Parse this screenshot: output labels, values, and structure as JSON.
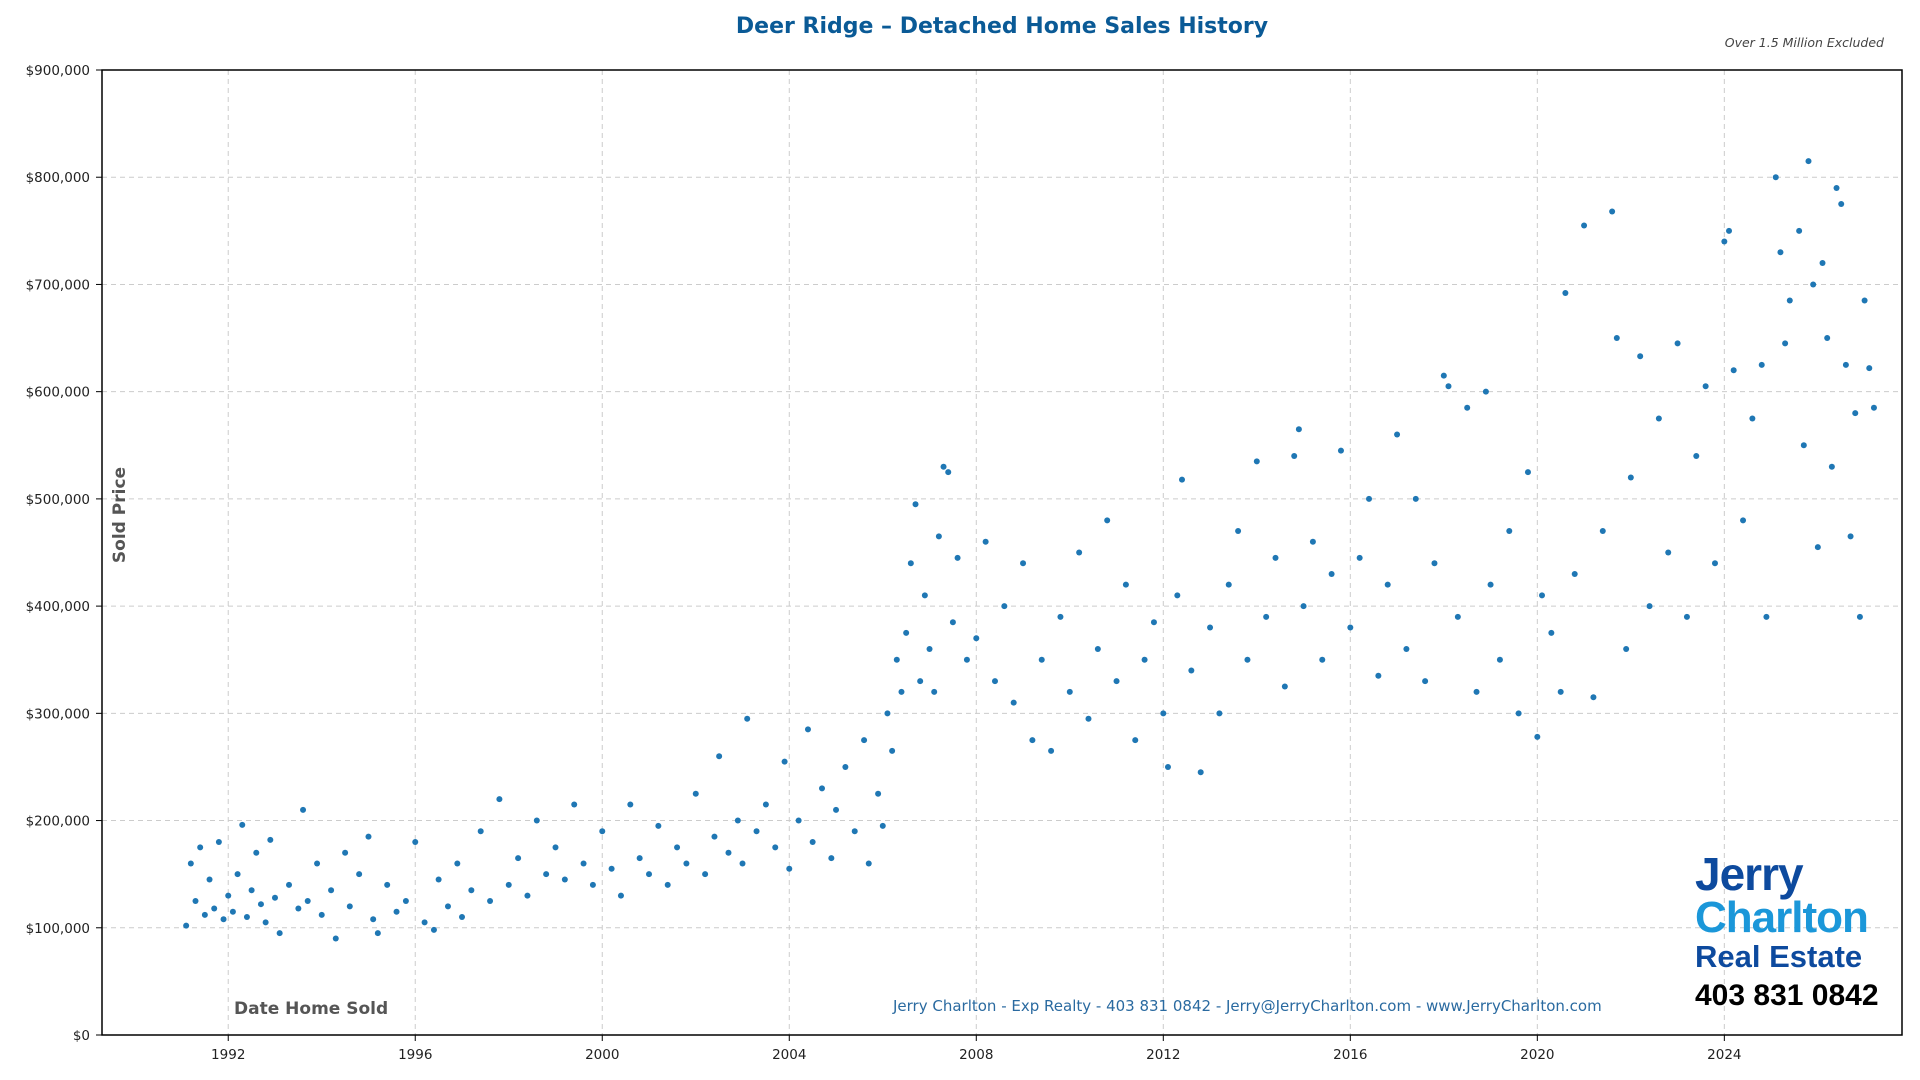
{
  "chart_data": {
    "type": "scatter",
    "title": "Deer Ridge – Detached Home Sales History",
    "subtitle": "Over 1.5 Million Excluded",
    "xlabel": "Date Home Sold",
    "ylabel": "Sold Price",
    "xlim": [
      1989.3,
      2027.8
    ],
    "ylim": [
      0,
      900000
    ],
    "x_ticks": [
      "1992",
      "1996",
      "2000",
      "2004",
      "2008",
      "2012",
      "2016",
      "2020",
      "2024"
    ],
    "y_ticks": [
      "$0",
      "$100,000",
      "$200,000",
      "$300,000",
      "$400,000",
      "$500,000",
      "$600,000",
      "$700,000",
      "$800,000",
      "$900,000"
    ],
    "grid": true,
    "color": "#1f77b4",
    "points": [
      [
        1991.1,
        102000
      ],
      [
        1991.2,
        160000
      ],
      [
        1991.3,
        125000
      ],
      [
        1991.4,
        175000
      ],
      [
        1991.5,
        112000
      ],
      [
        1991.6,
        145000
      ],
      [
        1991.7,
        118000
      ],
      [
        1991.8,
        180000
      ],
      [
        1991.9,
        108000
      ],
      [
        1992.0,
        130000
      ],
      [
        1992.1,
        115000
      ],
      [
        1992.2,
        150000
      ],
      [
        1992.3,
        196000
      ],
      [
        1992.4,
        110000
      ],
      [
        1992.5,
        135000
      ],
      [
        1992.6,
        170000
      ],
      [
        1992.7,
        122000
      ],
      [
        1992.8,
        105000
      ],
      [
        1992.9,
        182000
      ],
      [
        1993.0,
        128000
      ],
      [
        1993.1,
        95000
      ],
      [
        1993.3,
        140000
      ],
      [
        1993.5,
        118000
      ],
      [
        1993.6,
        210000
      ],
      [
        1993.7,
        125000
      ],
      [
        1993.9,
        160000
      ],
      [
        1994.0,
        112000
      ],
      [
        1994.2,
        135000
      ],
      [
        1994.3,
        90000
      ],
      [
        1994.5,
        170000
      ],
      [
        1994.6,
        120000
      ],
      [
        1994.8,
        150000
      ],
      [
        1995.0,
        185000
      ],
      [
        1995.1,
        108000
      ],
      [
        1995.2,
        95000
      ],
      [
        1995.4,
        140000
      ],
      [
        1995.6,
        115000
      ],
      [
        1995.8,
        125000
      ],
      [
        1996.0,
        180000
      ],
      [
        1996.2,
        105000
      ],
      [
        1996.4,
        98000
      ],
      [
        1996.5,
        145000
      ],
      [
        1996.7,
        120000
      ],
      [
        1996.9,
        160000
      ],
      [
        1997.0,
        110000
      ],
      [
        1997.2,
        135000
      ],
      [
        1997.4,
        190000
      ],
      [
        1997.6,
        125000
      ],
      [
        1997.8,
        220000
      ],
      [
        1998.0,
        140000
      ],
      [
        1998.2,
        165000
      ],
      [
        1998.4,
        130000
      ],
      [
        1998.6,
        200000
      ],
      [
        1998.8,
        150000
      ],
      [
        1999.0,
        175000
      ],
      [
        1999.2,
        145000
      ],
      [
        1999.4,
        215000
      ],
      [
        1999.6,
        160000
      ],
      [
        1999.8,
        140000
      ],
      [
        2000.0,
        190000
      ],
      [
        2000.2,
        155000
      ],
      [
        2000.4,
        130000
      ],
      [
        2000.6,
        215000
      ],
      [
        2000.8,
        165000
      ],
      [
        2001.0,
        150000
      ],
      [
        2001.2,
        195000
      ],
      [
        2001.4,
        140000
      ],
      [
        2001.6,
        175000
      ],
      [
        2001.8,
        160000
      ],
      [
        2002.0,
        225000
      ],
      [
        2002.2,
        150000
      ],
      [
        2002.4,
        185000
      ],
      [
        2002.5,
        260000
      ],
      [
        2002.7,
        170000
      ],
      [
        2002.9,
        200000
      ],
      [
        2003.0,
        160000
      ],
      [
        2003.1,
        295000
      ],
      [
        2003.3,
        190000
      ],
      [
        2003.5,
        215000
      ],
      [
        2003.7,
        175000
      ],
      [
        2003.9,
        255000
      ],
      [
        2004.0,
        155000
      ],
      [
        2004.2,
        200000
      ],
      [
        2004.4,
        285000
      ],
      [
        2004.5,
        180000
      ],
      [
        2004.7,
        230000
      ],
      [
        2004.9,
        165000
      ],
      [
        2005.0,
        210000
      ],
      [
        2005.2,
        250000
      ],
      [
        2005.4,
        190000
      ],
      [
        2005.6,
        275000
      ],
      [
        2005.7,
        160000
      ],
      [
        2005.9,
        225000
      ],
      [
        2006.0,
        195000
      ],
      [
        2006.1,
        300000
      ],
      [
        2006.2,
        265000
      ],
      [
        2006.3,
        350000
      ],
      [
        2006.4,
        320000
      ],
      [
        2006.5,
        375000
      ],
      [
        2006.6,
        440000
      ],
      [
        2006.7,
        495000
      ],
      [
        2006.8,
        330000
      ],
      [
        2006.9,
        410000
      ],
      [
        2007.0,
        360000
      ],
      [
        2007.1,
        320000
      ],
      [
        2007.2,
        465000
      ],
      [
        2007.3,
        530000
      ],
      [
        2007.4,
        525000
      ],
      [
        2007.5,
        385000
      ],
      [
        2007.6,
        445000
      ],
      [
        2007.8,
        350000
      ],
      [
        2008.0,
        370000
      ],
      [
        2008.2,
        460000
      ],
      [
        2008.4,
        330000
      ],
      [
        2008.6,
        400000
      ],
      [
        2008.8,
        310000
      ],
      [
        2009.0,
        440000
      ],
      [
        2009.2,
        275000
      ],
      [
        2009.4,
        350000
      ],
      [
        2009.6,
        265000
      ],
      [
        2009.8,
        390000
      ],
      [
        2010.0,
        320000
      ],
      [
        2010.2,
        450000
      ],
      [
        2010.4,
        295000
      ],
      [
        2010.6,
        360000
      ],
      [
        2010.8,
        480000
      ],
      [
        2011.0,
        330000
      ],
      [
        2011.2,
        420000
      ],
      [
        2011.4,
        275000
      ],
      [
        2011.6,
        350000
      ],
      [
        2011.8,
        385000
      ],
      [
        2012.0,
        300000
      ],
      [
        2012.1,
        250000
      ],
      [
        2012.3,
        410000
      ],
      [
        2012.4,
        518000
      ],
      [
        2012.6,
        340000
      ],
      [
        2012.8,
        245000
      ],
      [
        2013.0,
        380000
      ],
      [
        2013.2,
        300000
      ],
      [
        2013.4,
        420000
      ],
      [
        2013.6,
        470000
      ],
      [
        2013.8,
        350000
      ],
      [
        2014.0,
        535000
      ],
      [
        2014.2,
        390000
      ],
      [
        2014.4,
        445000
      ],
      [
        2014.6,
        325000
      ],
      [
        2014.8,
        540000
      ],
      [
        2014.9,
        565000
      ],
      [
        2015.0,
        400000
      ],
      [
        2015.2,
        460000
      ],
      [
        2015.4,
        350000
      ],
      [
        2015.6,
        430000
      ],
      [
        2015.8,
        545000
      ],
      [
        2016.0,
        380000
      ],
      [
        2016.2,
        445000
      ],
      [
        2016.4,
        500000
      ],
      [
        2016.6,
        335000
      ],
      [
        2016.8,
        420000
      ],
      [
        2017.0,
        560000
      ],
      [
        2017.2,
        360000
      ],
      [
        2017.4,
        500000
      ],
      [
        2017.6,
        330000
      ],
      [
        2017.8,
        440000
      ],
      [
        2018.0,
        615000
      ],
      [
        2018.1,
        605000
      ],
      [
        2018.3,
        390000
      ],
      [
        2018.5,
        585000
      ],
      [
        2018.7,
        320000
      ],
      [
        2018.9,
        600000
      ],
      [
        2019.0,
        420000
      ],
      [
        2019.2,
        350000
      ],
      [
        2019.4,
        470000
      ],
      [
        2019.6,
        300000
      ],
      [
        2019.8,
        525000
      ],
      [
        2020.0,
        278000
      ],
      [
        2020.1,
        410000
      ],
      [
        2020.3,
        375000
      ],
      [
        2020.5,
        320000
      ],
      [
        2020.6,
        692000
      ],
      [
        2020.8,
        430000
      ],
      [
        2021.0,
        755000
      ],
      [
        2021.2,
        315000
      ],
      [
        2021.4,
        470000
      ],
      [
        2021.6,
        768000
      ],
      [
        2021.7,
        650000
      ],
      [
        2021.9,
        360000
      ],
      [
        2022.0,
        520000
      ],
      [
        2022.2,
        633000
      ],
      [
        2022.4,
        400000
      ],
      [
        2022.6,
        575000
      ],
      [
        2022.8,
        450000
      ],
      [
        2023.0,
        645000
      ],
      [
        2023.2,
        390000
      ],
      [
        2023.4,
        540000
      ],
      [
        2023.6,
        605000
      ],
      [
        2023.8,
        440000
      ],
      [
        2024.0,
        740000
      ],
      [
        2024.1,
        750000
      ],
      [
        2024.2,
        620000
      ],
      [
        2024.4,
        480000
      ],
      [
        2024.6,
        575000
      ],
      [
        2024.8,
        625000
      ],
      [
        2024.9,
        390000
      ],
      [
        2025.1,
        800000
      ],
      [
        2025.2,
        730000
      ],
      [
        2025.3,
        645000
      ],
      [
        2025.4,
        685000
      ],
      [
        2025.6,
        750000
      ],
      [
        2025.7,
        550000
      ],
      [
        2025.8,
        815000
      ],
      [
        2025.9,
        700000
      ],
      [
        2026.0,
        455000
      ],
      [
        2026.1,
        720000
      ],
      [
        2026.2,
        650000
      ],
      [
        2026.3,
        530000
      ],
      [
        2026.4,
        790000
      ],
      [
        2026.5,
        775000
      ],
      [
        2026.6,
        625000
      ],
      [
        2026.7,
        465000
      ],
      [
        2026.8,
        580000
      ],
      [
        2026.9,
        390000
      ],
      [
        2027.0,
        685000
      ],
      [
        2027.1,
        622000
      ],
      [
        2027.2,
        585000
      ]
    ]
  },
  "footer": "Jerry Charlton - Exp Realty - 403 831 0842 - Jerry@JerryCharlton.com - www.JerryCharlton.com",
  "logo": {
    "line1": "Jerry",
    "line2": "Charlton",
    "line3": "Real Estate",
    "phone": "403 831 0842"
  }
}
